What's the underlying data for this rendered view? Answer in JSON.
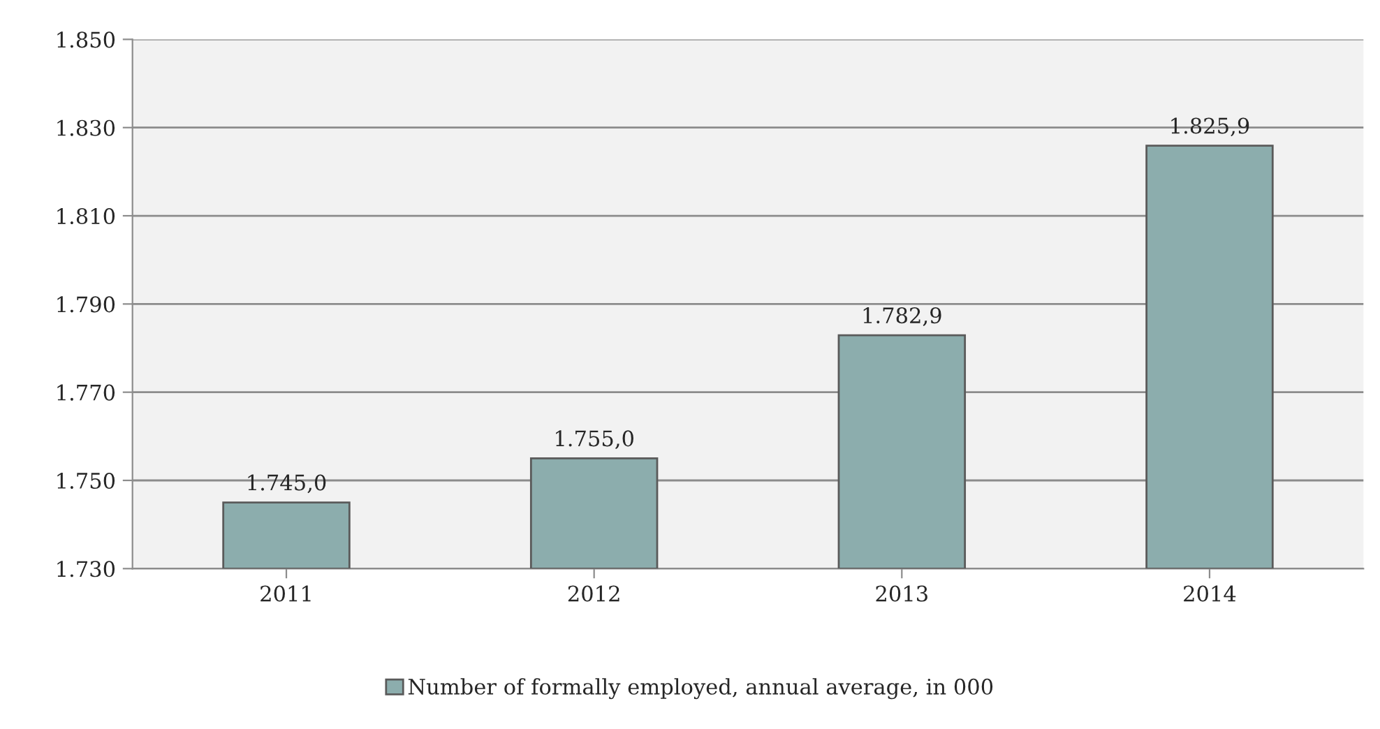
{
  "chart_data": {
    "type": "bar",
    "categories": [
      "2011",
      "2012",
      "2013",
      "2014"
    ],
    "series": [
      {
        "name": "Number of formally employed, annual average, in 000",
        "color": "#8cadad",
        "values": [
          1745.0,
          1755.0,
          1782.9,
          1825.9
        ],
        "value_labels": [
          "1.745,0",
          "1.755,0",
          "1.782,9",
          "1.825,9"
        ]
      }
    ],
    "ylim": [
      1730,
      1850
    ],
    "yticks": [
      {
        "value": 1730,
        "label": "1.730"
      },
      {
        "value": 1750,
        "label": "1.750"
      },
      {
        "value": 1770,
        "label": "1.770"
      },
      {
        "value": 1790,
        "label": "1.790"
      },
      {
        "value": 1810,
        "label": "1.810"
      },
      {
        "value": 1830,
        "label": "1.830"
      },
      {
        "value": 1850,
        "label": "1.850"
      }
    ],
    "grid": "y",
    "legend": "bottom"
  }
}
